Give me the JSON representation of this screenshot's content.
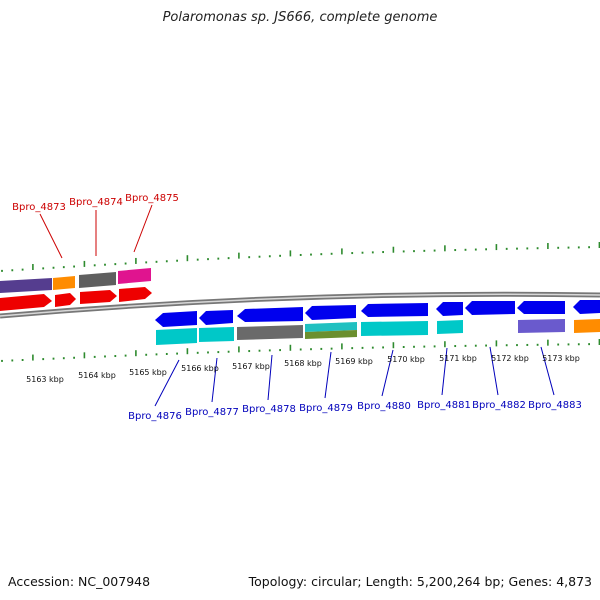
{
  "title": "Polaromonas sp. JS666, complete genome",
  "footer": {
    "accession": "Accession: NC_007948",
    "summary": "Topology: circular; Length: 5,200,264 bp; Genes: 4,873"
  },
  "colors": {
    "backbone": "#8f8f8f",
    "tick": "#2e8b2e",
    "top_label": "#cc0000",
    "bottom_label": "#0000bb"
  },
  "scale_labels": [
    "5163 kbp",
    "5164 kbp",
    "5165 kbp",
    "5166 kbp",
    "5167 kbp",
    "5168 kbp",
    "5169 kbp",
    "5170 kbp",
    "5171 kbp",
    "5172 kbp",
    "5173 kbp"
  ],
  "genes_top": [
    "Bpro_4873",
    "Bpro_4874",
    "Bpro_4875"
  ],
  "genes_bottom": [
    "Bpro_4876",
    "Bpro_4877",
    "Bpro_4878",
    "Bpro_4879",
    "Bpro_4880",
    "Bpro_4881",
    "Bpro_4882",
    "Bpro_4883"
  ]
}
